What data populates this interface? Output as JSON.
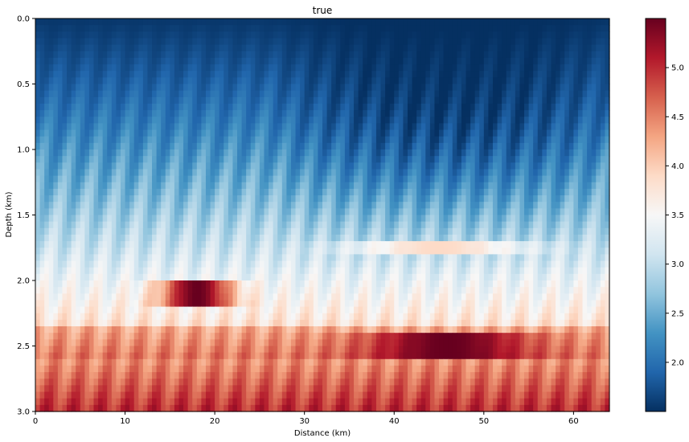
{
  "chart_data": {
    "type": "heatmap",
    "title": "true",
    "xlabel": "Distance (km)",
    "ylabel": "Depth (km)",
    "xlim": [
      0,
      64
    ],
    "ylim": [
      3.0,
      0.0
    ],
    "y_inverted": true,
    "x_ticks": [
      "0",
      "10",
      "20",
      "30",
      "40",
      "50",
      "60"
    ],
    "x_tick_values": [
      0,
      10,
      20,
      30,
      40,
      50,
      60
    ],
    "y_ticks": [
      "0.0",
      "0.5",
      "1.0",
      "1.5",
      "2.0",
      "2.5",
      "3.0"
    ],
    "y_tick_values": [
      0.0,
      0.5,
      1.0,
      1.5,
      2.0,
      2.5,
      3.0
    ],
    "colorbar": {
      "cmap": "RdBu_r",
      "vmin": 1.5,
      "vmax": 5.5,
      "ticks": [
        "2.0",
        "2.5",
        "3.0",
        "3.5",
        "4.0",
        "4.5",
        "5.0"
      ],
      "tick_values": [
        2.0,
        2.5,
        3.0,
        3.5,
        4.0,
        4.5,
        5.0
      ]
    },
    "grid": false,
    "description_values": {
      "layer_velocity_by_depth_km": [
        [
          0.0,
          1.6
        ],
        [
          0.5,
          1.8
        ],
        [
          1.0,
          2.2
        ],
        [
          1.5,
          2.8
        ],
        [
          2.0,
          3.2
        ],
        [
          2.5,
          3.8
        ],
        [
          3.0,
          3.5
        ]
      ],
      "anomalies": [
        {
          "center_x": 18,
          "depth_top": 2.0,
          "depth_bottom": 2.2,
          "value": 5.5
        },
        {
          "center_x": 46,
          "depth_top": 2.4,
          "depth_bottom": 2.6,
          "value": 5.5
        },
        {
          "center_x": 45,
          "depth_top": 1.7,
          "depth_bottom": 1.8,
          "value": 3.9
        }
      ]
    }
  }
}
